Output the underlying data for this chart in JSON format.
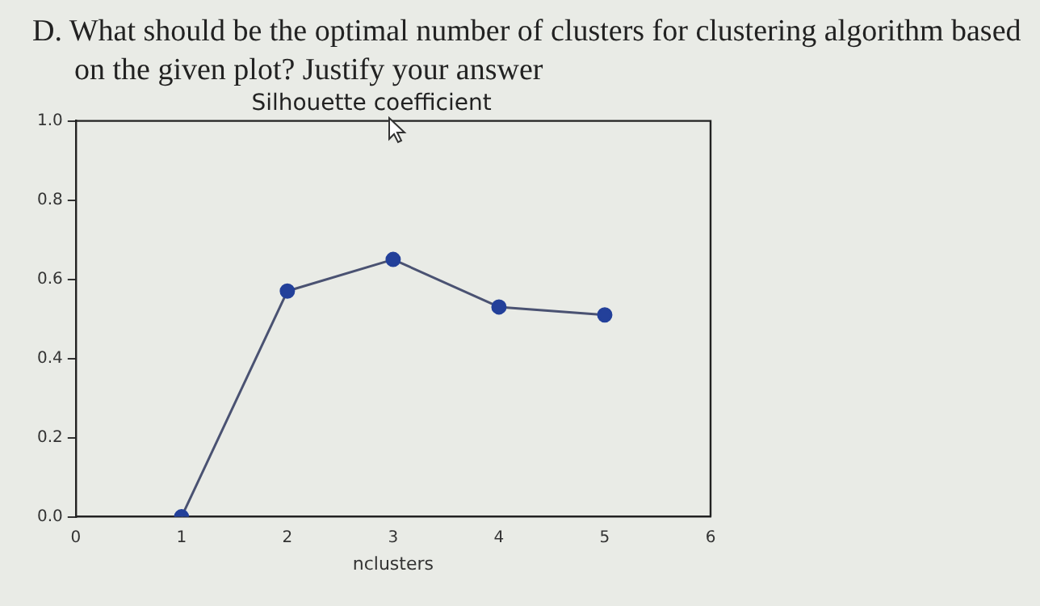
{
  "chart_data": {
    "type": "line",
    "title": "Silhouette coefficient",
    "xlabel": "nclusters",
    "annotations": [
      "D. What should be the optimal number of clusters for clustering algorithm based on the given plot? Justify your answer"
    ],
    "x": [
      1,
      2,
      3,
      4,
      5
    ],
    "series": [
      {
        "color": "#23409a",
        "values": [
          0.0,
          0.57,
          0.65,
          0.53,
          0.51
        ]
      }
    ],
    "xlim": [
      0,
      6
    ],
    "xticks": [
      0,
      1,
      2,
      3,
      4,
      5,
      6
    ],
    "ylim": [
      0,
      1
    ],
    "yticks": [
      {
        "value": 0,
        "label": "0.0"
      },
      0.2,
      0.4,
      0.6,
      0.8,
      {
        "value": 1,
        "label": "1.0"
      }
    ],
    "grid": false,
    "legend": false,
    "marker": "circle",
    "line_style": "solid"
  }
}
